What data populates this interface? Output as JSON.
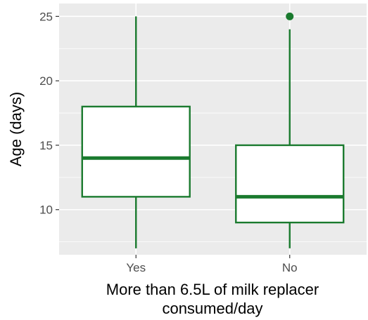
{
  "chart_data": {
    "type": "boxplot",
    "xlabel": [
      "More than 6.5L of milk replacer",
      "consumed/day"
    ],
    "ylabel": "Age (days)",
    "ylim": [
      6.5,
      26
    ],
    "yticks": [
      10,
      15,
      20,
      25
    ],
    "grid": true,
    "colors": {
      "box": "#1a7a2e",
      "panel": "#ebebeb",
      "grid": "#ffffff",
      "fill": "#ffffff"
    },
    "categories": [
      "Yes",
      "No"
    ],
    "boxes": [
      {
        "category": "Yes",
        "min": 7,
        "q1": 11,
        "median": 14,
        "q3": 18,
        "max": 25,
        "outliers": []
      },
      {
        "category": "No",
        "min": 7,
        "q1": 9,
        "median": 11,
        "q3": 15,
        "max": 24,
        "outliers": [
          25
        ]
      }
    ]
  }
}
